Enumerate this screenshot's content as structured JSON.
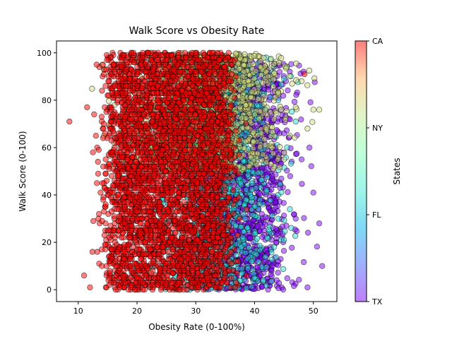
{
  "chart_data": {
    "type": "scatter",
    "title": "Walk Score vs Obesity Rate",
    "xlabel": "Obesity Rate (0-100%)",
    "ylabel": "Walk Score (0-100)",
    "xlim": [
      6.3,
      54.0
    ],
    "ylim": [
      -5,
      105
    ],
    "x_ticks": [
      10,
      20,
      30,
      40,
      50
    ],
    "y_ticks": [
      0,
      20,
      40,
      60,
      80,
      100
    ],
    "grid": false,
    "colorbar": {
      "label": "States",
      "ticks": [
        "TX",
        "FL",
        "NY",
        "CA"
      ],
      "colormap": "rainbow",
      "alpha": 0.5
    },
    "series": [
      {
        "state": "TX",
        "color": "#8000ff",
        "x_range": [
          28,
          52
        ],
        "y_range": [
          0,
          95
        ],
        "approx_points": 1500,
        "sample_points": [
          [
            51.5,
            10
          ],
          [
            51,
            28
          ],
          [
            50,
            41
          ],
          [
            49,
            1
          ],
          [
            48,
            55
          ],
          [
            47,
            30
          ],
          [
            46,
            92
          ],
          [
            45,
            66
          ],
          [
            44,
            12
          ],
          [
            43,
            48
          ]
        ]
      },
      {
        "state": "FL",
        "color": "#2adddd",
        "x_range": [
          14,
          48
        ],
        "y_range": [
          0,
          98
        ],
        "approx_points": 1500,
        "sample_points": [
          [
            47,
            71
          ],
          [
            46,
            34
          ],
          [
            45,
            21
          ],
          [
            44,
            80
          ],
          [
            42,
            98
          ],
          [
            41,
            63
          ],
          [
            40,
            5
          ],
          [
            38,
            22
          ]
        ]
      },
      {
        "state": "NY",
        "color": "#d4dd80",
        "x_range": [
          12,
          51
        ],
        "y_range": [
          0,
          100
        ],
        "approx_points": 1500,
        "sample_points": [
          [
            51,
            76
          ],
          [
            50,
            76
          ],
          [
            49,
            68
          ],
          [
            48,
            88
          ],
          [
            47,
            77
          ],
          [
            46,
            65
          ],
          [
            45,
            55
          ],
          [
            44,
            83
          ],
          [
            43,
            60
          ],
          [
            42,
            92
          ]
        ]
      },
      {
        "state": "CA",
        "color": "#ff0000",
        "x_range": [
          8.5,
          49
        ],
        "y_range": [
          0,
          100
        ],
        "approx_points": 4000,
        "sample_points": [
          [
            8.5,
            71
          ],
          [
            11,
            6
          ],
          [
            11.5,
            77
          ],
          [
            12,
            1
          ],
          [
            12.5,
            58
          ],
          [
            13,
            65
          ],
          [
            48.5,
            91
          ],
          [
            35,
            50
          ],
          [
            25,
            60
          ],
          [
            20,
            10
          ]
        ]
      }
    ]
  }
}
